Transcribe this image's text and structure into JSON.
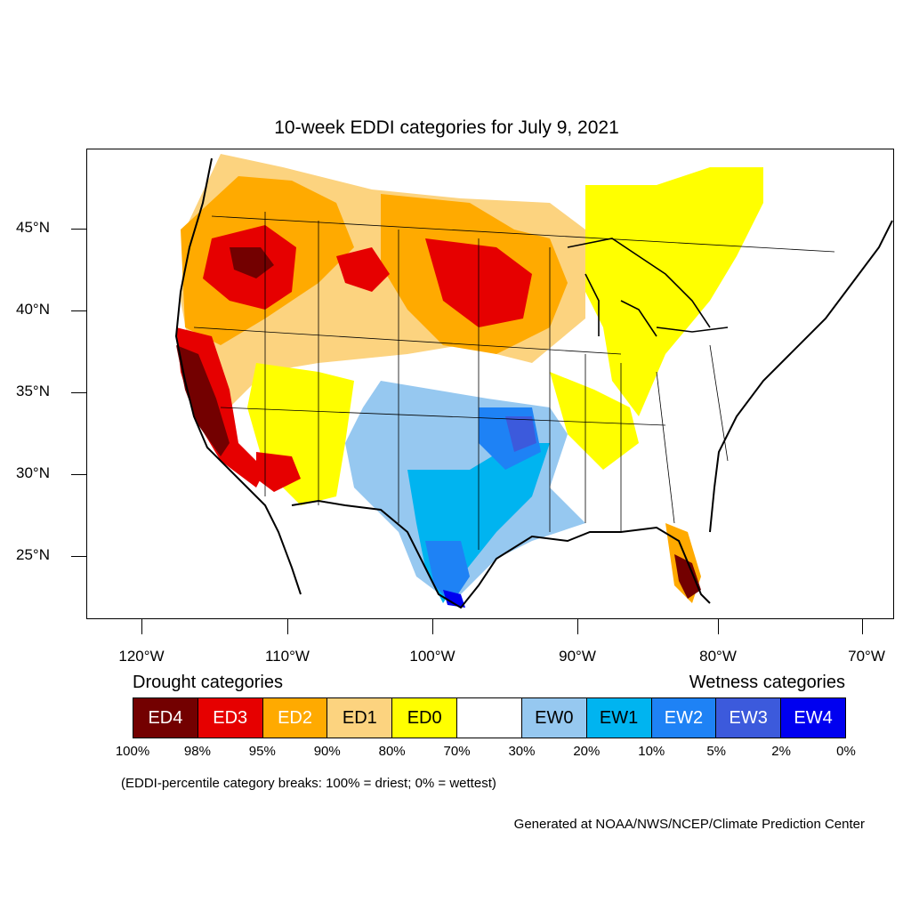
{
  "title": "10-week EDDI categories for July 9, 2021",
  "lat_labels": [
    "45°N",
    "40°N",
    "35°N",
    "30°N",
    "25°N"
  ],
  "lon_labels": [
    "120°W",
    "110°W",
    "100°W",
    "90°W",
    "80°W",
    "70°W"
  ],
  "legend": {
    "drought_heading": "Drought categories",
    "wetness_heading": "Wetness categories",
    "categories": [
      {
        "label": "ED4",
        "color": "#730000",
        "text_color": "#ffffff"
      },
      {
        "label": "ED3",
        "color": "#e60000",
        "text_color": "#ffffff"
      },
      {
        "label": "ED2",
        "color": "#ffaa00",
        "text_color": "#ffffff"
      },
      {
        "label": "ED1",
        "color": "#fcd37f",
        "text_color": "#000000"
      },
      {
        "label": "ED0",
        "color": "#ffff00",
        "text_color": "#000000"
      },
      {
        "label": "",
        "color": "#ffffff",
        "text_color": "#000000"
      },
      {
        "label": "EW0",
        "color": "#96c8f0",
        "text_color": "#000000"
      },
      {
        "label": "EW1",
        "color": "#00b4f0",
        "text_color": "#000000"
      },
      {
        "label": "EW2",
        "color": "#1e82f5",
        "text_color": "#ffffff"
      },
      {
        "label": "EW3",
        "color": "#3c5adc",
        "text_color": "#ffffff"
      },
      {
        "label": "EW4",
        "color": "#0000f0",
        "text_color": "#ffffff"
      }
    ],
    "breaks": [
      "100%",
      "98%",
      "95%",
      "90%",
      "80%",
      "70%",
      "30%",
      "20%",
      "10%",
      "5%",
      "2%",
      "0%"
    ]
  },
  "note": "(EDDI-percentile category breaks: 100% = driest; 0% = wettest)",
  "credit": "Generated at NOAA/NWS/NCEP/Climate Prediction Center"
}
